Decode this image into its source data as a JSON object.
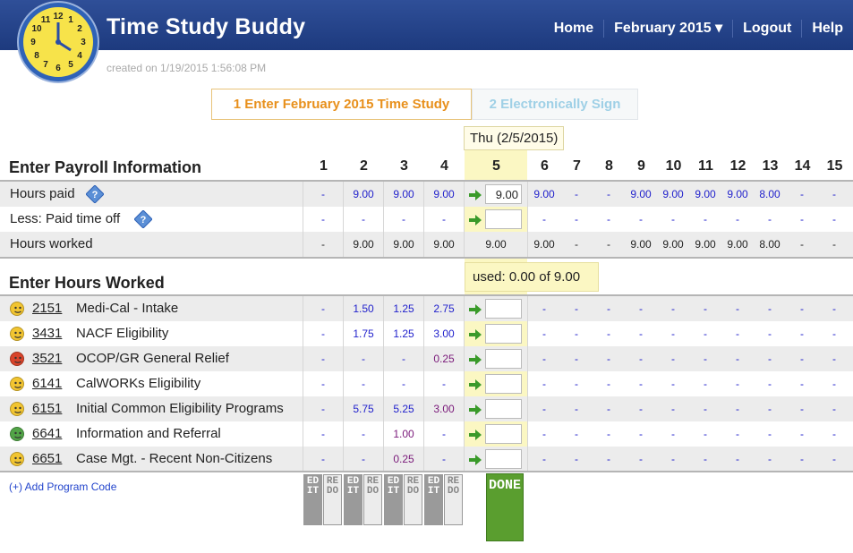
{
  "app": {
    "title": "Time Study Buddy"
  },
  "nav": {
    "home": "Home",
    "month": "February 2015 ▾",
    "logout": "Logout",
    "help": "Help"
  },
  "created": "created on 1/19/2015 1:56:08 PM",
  "steps": {
    "step1": "1 Enter February 2015 Time Study",
    "step2": "2 Electronically Sign"
  },
  "day_tooltip": "Thu (2/5/2015)",
  "payroll": {
    "title": "Enter Payroll Information",
    "days": [
      "1",
      "2",
      "3",
      "4",
      "5",
      "6",
      "7",
      "8",
      "9",
      "10",
      "11",
      "12",
      "13",
      "14",
      "15"
    ],
    "selected_day_index": 4,
    "rows": [
      {
        "label": "Hours paid",
        "help": true,
        "values": [
          "-",
          "9.00",
          "9.00",
          "9.00",
          "9.00",
          "9.00",
          "-",
          "-",
          "9.00",
          "9.00",
          "9.00",
          "9.00",
          "8.00",
          "-",
          "-"
        ],
        "input_value": "9.00"
      },
      {
        "label": "Less: Paid time off",
        "help": true,
        "values": [
          "-",
          "-",
          "-",
          "-",
          "",
          "-",
          "-",
          "-",
          "-",
          "-",
          "-",
          "-",
          "-",
          "-",
          "-"
        ],
        "input_value": ""
      },
      {
        "label": "Hours worked",
        "help": false,
        "values": [
          "-",
          "9.00",
          "9.00",
          "9.00",
          "9.00",
          "9.00",
          "-",
          "-",
          "9.00",
          "9.00",
          "9.00",
          "9.00",
          "8.00",
          "-",
          "-"
        ]
      }
    ]
  },
  "hours": {
    "title": "Enter Hours Worked",
    "used_label": "used: 0.00 of 9.00",
    "rows": [
      {
        "code": "2151",
        "name": "Medi-Cal - Intake",
        "mood": "yellow",
        "values": [
          "-",
          "1.50",
          "1.25",
          "2.75",
          "",
          "-",
          "-",
          "-",
          "-",
          "-",
          "-",
          "-",
          "-",
          "-",
          "-"
        ]
      },
      {
        "code": "3431",
        "name": "NACF Eligibility",
        "mood": "yellow",
        "values": [
          "-",
          "1.75",
          "1.25",
          "3.00",
          "",
          "-",
          "-",
          "-",
          "-",
          "-",
          "-",
          "-",
          "-",
          "-",
          "-"
        ]
      },
      {
        "code": "3521",
        "name": "OCOP/GR General Relief",
        "mood": "red",
        "values": [
          "-",
          "-",
          "-",
          "0.25",
          "",
          "-",
          "-",
          "-",
          "-",
          "-",
          "-",
          "-",
          "-",
          "-",
          "-"
        ]
      },
      {
        "code": "6141",
        "name": "CalWORKs Eligibility",
        "mood": "yellow",
        "values": [
          "-",
          "-",
          "-",
          "-",
          "",
          "-",
          "-",
          "-",
          "-",
          "-",
          "-",
          "-",
          "-",
          "-",
          "-"
        ]
      },
      {
        "code": "6151",
        "name": "Initial Common Eligibility Programs",
        "mood": "yellow",
        "values": [
          "-",
          "5.75",
          "5.25",
          "3.00",
          "",
          "-",
          "-",
          "-",
          "-",
          "-",
          "-",
          "-",
          "-",
          "-",
          "-"
        ]
      },
      {
        "code": "6641",
        "name": "Information and Referral",
        "mood": "green",
        "values": [
          "-",
          "-",
          "1.00",
          "-",
          "",
          "-",
          "-",
          "-",
          "-",
          "-",
          "-",
          "-",
          "-",
          "-",
          "-"
        ]
      },
      {
        "code": "6651",
        "name": "Case Mgt. - Recent Non-Citizens",
        "mood": "yellow",
        "values": [
          "-",
          "-",
          "0.25",
          "-",
          "",
          "-",
          "-",
          "-",
          "-",
          "-",
          "-",
          "-",
          "-",
          "-",
          "-"
        ]
      }
    ],
    "add_code": "(+) Add Program Code"
  },
  "buttons": {
    "edit": "EDIT",
    "redo": "REDO",
    "done": "DONE"
  },
  "colors": {
    "header": "#1d3a7e",
    "highlight": "#fbf7c3",
    "value_blue": "#2222cc",
    "value_purple": "#7a1a7a",
    "done_green": "#5a9e2f",
    "step_orange": "#e8901c"
  },
  "icons": {
    "logo": "clock-icon",
    "help": "help-diamond-icon",
    "arrow": "right-arrow-icon",
    "mood": "smiley-face-icon"
  }
}
